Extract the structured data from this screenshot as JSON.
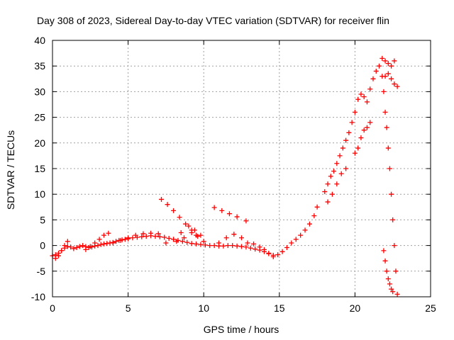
{
  "chart_data": {
    "type": "scatter",
    "title": "Day 308 of 2023, Sidereal Day-to-day VTEC variation (SDTVAR) for receiver flin",
    "xlabel": "GPS time / hours",
    "ylabel": "SDTVAR / TECUs",
    "xlim": [
      0,
      25
    ],
    "ylim": [
      -10,
      40
    ],
    "xticks": [
      0,
      5,
      10,
      15,
      20,
      25
    ],
    "yticks": [
      -10,
      -5,
      0,
      5,
      10,
      15,
      20,
      25,
      30,
      35,
      40
    ],
    "grid": true,
    "marker": "+",
    "color": "#ff0000",
    "series": [
      {
        "name": "arc-1",
        "x": [
          0.0,
          0.2,
          0.4,
          0.6,
          0.8,
          1.0,
          1.2,
          1.4,
          1.6,
          1.8,
          2.0,
          2.2,
          2.4,
          2.6,
          2.8,
          3.0,
          3.2,
          3.4,
          3.6,
          3.8,
          4.0,
          4.2,
          4.4,
          4.6,
          4.8,
          5.0,
          5.3,
          5.6,
          5.9,
          6.2,
          6.5,
          6.8,
          7.1,
          7.4,
          7.7,
          8.0,
          8.3,
          8.6,
          8.9,
          9.2,
          9.5,
          9.8,
          10.1,
          10.4,
          10.7,
          11.0,
          11.3,
          11.6,
          11.9,
          12.2,
          12.5,
          12.8,
          13.1,
          13.4,
          13.7,
          14.0,
          14.3,
          14.6,
          14.9,
          15.2,
          15.5,
          15.8,
          16.1,
          16.4,
          16.7,
          17.0,
          17.3,
          17.5
        ],
        "y": [
          -2.0,
          -1.8,
          -1.5,
          -1.0,
          -0.5,
          -0.2,
          -0.3,
          -0.6,
          -0.4,
          -0.2,
          0.0,
          -0.2,
          -0.4,
          -0.3,
          -0.1,
          0.0,
          0.2,
          0.3,
          0.4,
          0.5,
          0.6,
          0.8,
          1.0,
          1.1,
          1.2,
          1.3,
          1.5,
          1.6,
          1.7,
          1.8,
          1.9,
          1.8,
          1.7,
          1.6,
          1.4,
          1.2,
          1.0,
          0.8,
          0.6,
          0.4,
          0.3,
          0.2,
          0.1,
          0.0,
          0.0,
          -0.1,
          -0.1,
          0.0,
          0.0,
          -0.1,
          -0.2,
          -0.3,
          -0.5,
          -0.7,
          -0.9,
          -1.2,
          -1.6,
          -1.9,
          -1.8,
          -1.2,
          -0.4,
          0.5,
          1.2,
          2.0,
          3.0,
          4.2,
          5.8,
          7.5
        ]
      },
      {
        "name": "arc-2",
        "x": [
          0.2,
          0.4,
          0.6,
          0.8,
          1.0
        ],
        "y": [
          -2.5,
          -2.0,
          -1.0,
          0.0,
          0.8
        ]
      },
      {
        "name": "arc-3",
        "x": [
          2.2,
          2.5,
          2.8,
          3.1,
          3.4,
          3.7
        ],
        "y": [
          -0.8,
          -0.2,
          0.5,
          1.2,
          2.0,
          2.4
        ]
      },
      {
        "name": "arc-4",
        "x": [
          4.0,
          4.5,
          5.0,
          5.5,
          6.0,
          6.5,
          7.0
        ],
        "y": [
          0.5,
          1.0,
          1.5,
          2.0,
          2.3,
          2.4,
          2.3
        ]
      },
      {
        "name": "arc-5",
        "x": [
          7.2,
          7.6,
          8.0,
          8.4,
          8.8,
          9.2,
          9.5
        ],
        "y": [
          9.0,
          8.0,
          6.8,
          5.5,
          4.2,
          3.0,
          2.0
        ]
      },
      {
        "name": "arc-6",
        "x": [
          7.5,
          8.0,
          8.5,
          9.0,
          9.4,
          9.8
        ],
        "y": [
          0.5,
          1.2,
          2.5,
          3.8,
          3.0,
          2.0
        ]
      },
      {
        "name": "arc-7",
        "x": [
          8.2,
          8.7,
          9.2,
          9.6,
          10.0
        ],
        "y": [
          0.8,
          1.5,
          2.5,
          1.8,
          0.8
        ]
      },
      {
        "name": "arc-8",
        "x": [
          10.7,
          11.2,
          11.7,
          12.2,
          12.8
        ],
        "y": [
          7.4,
          6.8,
          6.2,
          5.6,
          4.8
        ]
      },
      {
        "name": "arc-9",
        "x": [
          11.0,
          11.5,
          12.0,
          12.5,
          12.9
        ],
        "y": [
          0.5,
          1.5,
          2.2,
          1.5,
          0.5
        ]
      },
      {
        "name": "arc-10",
        "x": [
          13.3,
          13.7,
          14.0,
          14.3,
          14.6
        ],
        "y": [
          0.3,
          -0.3,
          -0.8,
          -1.5,
          -2.2
        ]
      },
      {
        "name": "arc-11",
        "x": [
          18.0,
          18.2,
          18.4,
          18.6,
          18.8,
          19.0,
          19.2,
          19.4,
          19.6,
          19.8,
          20.0,
          20.2,
          20.4,
          20.6
        ],
        "y": [
          10.5,
          12.0,
          13.5,
          14.5,
          16.0,
          17.5,
          19.0,
          20.5,
          22.0,
          24.0,
          26.0,
          28.5,
          29.5,
          29.0
        ]
      },
      {
        "name": "arc-12",
        "x": [
          18.2,
          18.5,
          18.8,
          19.1,
          19.4
        ],
        "y": [
          8.5,
          10.0,
          12.0,
          14.0,
          15.0
        ]
      },
      {
        "name": "arc-13",
        "x": [
          20.0,
          20.2,
          20.4,
          20.6,
          20.8,
          21.0
        ],
        "y": [
          18.0,
          19.0,
          21.0,
          22.5,
          23.0,
          24.0
        ]
      },
      {
        "name": "arc-14",
        "x": [
          20.8,
          21.0,
          21.2,
          21.4,
          21.6,
          21.8,
          22.0,
          22.2,
          22.4,
          22.6
        ],
        "y": [
          28.0,
          30.5,
          32.5,
          34.0,
          35.0,
          36.5,
          36.0,
          35.5,
          35.0,
          36.0
        ]
      },
      {
        "name": "arc-15",
        "x": [
          22.0,
          22.2,
          22.4,
          22.6,
          22.8
        ],
        "y": [
          33.0,
          33.5,
          32.5,
          31.5,
          31.0
        ]
      },
      {
        "name": "arc-16",
        "x": [
          21.8,
          21.9,
          22.0,
          22.1,
          22.2,
          22.3,
          22.4,
          22.5,
          22.6,
          22.7,
          22.8
        ],
        "y": [
          33.0,
          30.0,
          26.0,
          23.0,
          19.0,
          15.0,
          10.0,
          5.0,
          0.0,
          -5.0,
          -9.5
        ]
      },
      {
        "name": "arc-17",
        "x": [
          21.9,
          22.0,
          22.1,
          22.2,
          22.3,
          22.4,
          22.5
        ],
        "y": [
          -1.0,
          -3.0,
          -5.0,
          -6.5,
          -7.5,
          -8.5,
          -9.0
        ]
      }
    ]
  }
}
